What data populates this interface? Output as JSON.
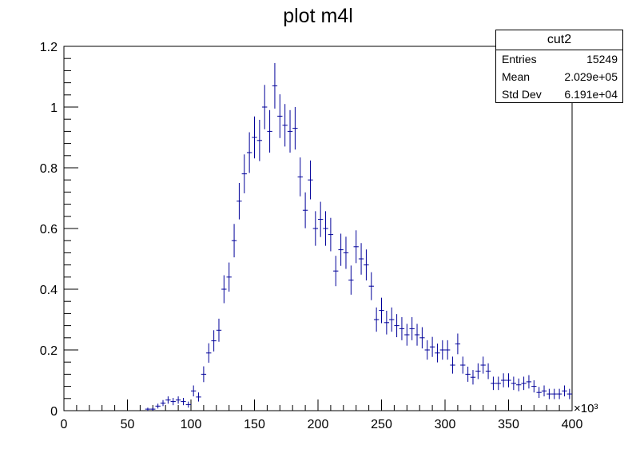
{
  "chart_data": {
    "type": "scatter",
    "title": "plot m4l",
    "xlabel": "",
    "ylabel": "",
    "x_multiplier_label": "×10³",
    "xlim": [
      0,
      400
    ],
    "ylim": [
      0,
      1.2
    ],
    "x_ticks": [
      "0",
      "50",
      "100",
      "150",
      "200",
      "250",
      "300",
      "350",
      "400"
    ],
    "y_ticks": [
      "0",
      "0.2",
      "0.4",
      "0.6",
      "0.8",
      "1",
      "1.2"
    ],
    "bin_width": 4,
    "grid": false,
    "color": "#000099",
    "series": [
      {
        "name": "cut2",
        "x": [
          66,
          70,
          74,
          78,
          82,
          86,
          90,
          94,
          98,
          102,
          106,
          110,
          114,
          118,
          122,
          126,
          130,
          134,
          138,
          142,
          146,
          150,
          154,
          158,
          162,
          166,
          170,
          174,
          178,
          182,
          186,
          190,
          194,
          198,
          202,
          206,
          210,
          214,
          218,
          222,
          226,
          230,
          234,
          238,
          242,
          246,
          250,
          254,
          258,
          262,
          266,
          270,
          274,
          278,
          282,
          286,
          290,
          294,
          298,
          302,
          306,
          310,
          314,
          318,
          322,
          326,
          330,
          334,
          338,
          342,
          346,
          350,
          354,
          358,
          362,
          366,
          370,
          374,
          378,
          382,
          386,
          390,
          394,
          398
        ],
        "y": [
          0.005,
          0.005,
          0.015,
          0.025,
          0.035,
          0.03,
          0.035,
          0.03,
          0.02,
          0.065,
          0.045,
          0.12,
          0.19,
          0.23,
          0.265,
          0.4,
          0.44,
          0.56,
          0.69,
          0.78,
          0.85,
          0.9,
          0.89,
          1.0,
          0.92,
          1.07,
          0.97,
          0.94,
          0.92,
          0.93,
          0.77,
          0.66,
          0.76,
          0.6,
          0.63,
          0.6,
          0.58,
          0.46,
          0.53,
          0.52,
          0.43,
          0.54,
          0.5,
          0.48,
          0.41,
          0.3,
          0.33,
          0.29,
          0.3,
          0.28,
          0.27,
          0.25,
          0.27,
          0.25,
          0.24,
          0.2,
          0.21,
          0.19,
          0.2,
          0.2,
          0.15,
          0.22,
          0.15,
          0.12,
          0.11,
          0.13,
          0.15,
          0.13,
          0.09,
          0.09,
          0.1,
          0.1,
          0.09,
          0.085,
          0.09,
          0.095,
          0.08,
          0.06,
          0.065,
          0.055,
          0.055,
          0.055,
          0.065,
          0.055
        ],
        "err": [
          0.005,
          0.005,
          0.008,
          0.01,
          0.012,
          0.012,
          0.012,
          0.012,
          0.01,
          0.018,
          0.015,
          0.026,
          0.032,
          0.035,
          0.038,
          0.046,
          0.048,
          0.055,
          0.06,
          0.064,
          0.067,
          0.069,
          0.068,
          0.073,
          0.07,
          0.075,
          0.072,
          0.07,
          0.07,
          0.07,
          0.064,
          0.059,
          0.064,
          0.057,
          0.058,
          0.057,
          0.055,
          0.05,
          0.053,
          0.053,
          0.048,
          0.054,
          0.052,
          0.051,
          0.046,
          0.04,
          0.042,
          0.039,
          0.04,
          0.038,
          0.038,
          0.036,
          0.038,
          0.036,
          0.035,
          0.032,
          0.033,
          0.031,
          0.032,
          0.032,
          0.028,
          0.034,
          0.028,
          0.025,
          0.024,
          0.026,
          0.028,
          0.026,
          0.022,
          0.022,
          0.023,
          0.023,
          0.022,
          0.021,
          0.022,
          0.022,
          0.02,
          0.018,
          0.018,
          0.017,
          0.017,
          0.017,
          0.018,
          0.017
        ]
      }
    ]
  },
  "stats_box": {
    "title": "cut2",
    "rows": [
      {
        "label": "Entries",
        "value": "15249"
      },
      {
        "label": "Mean",
        "value": "2.029e+05"
      },
      {
        "label": "Std Dev",
        "value": "6.191e+04"
      }
    ]
  }
}
